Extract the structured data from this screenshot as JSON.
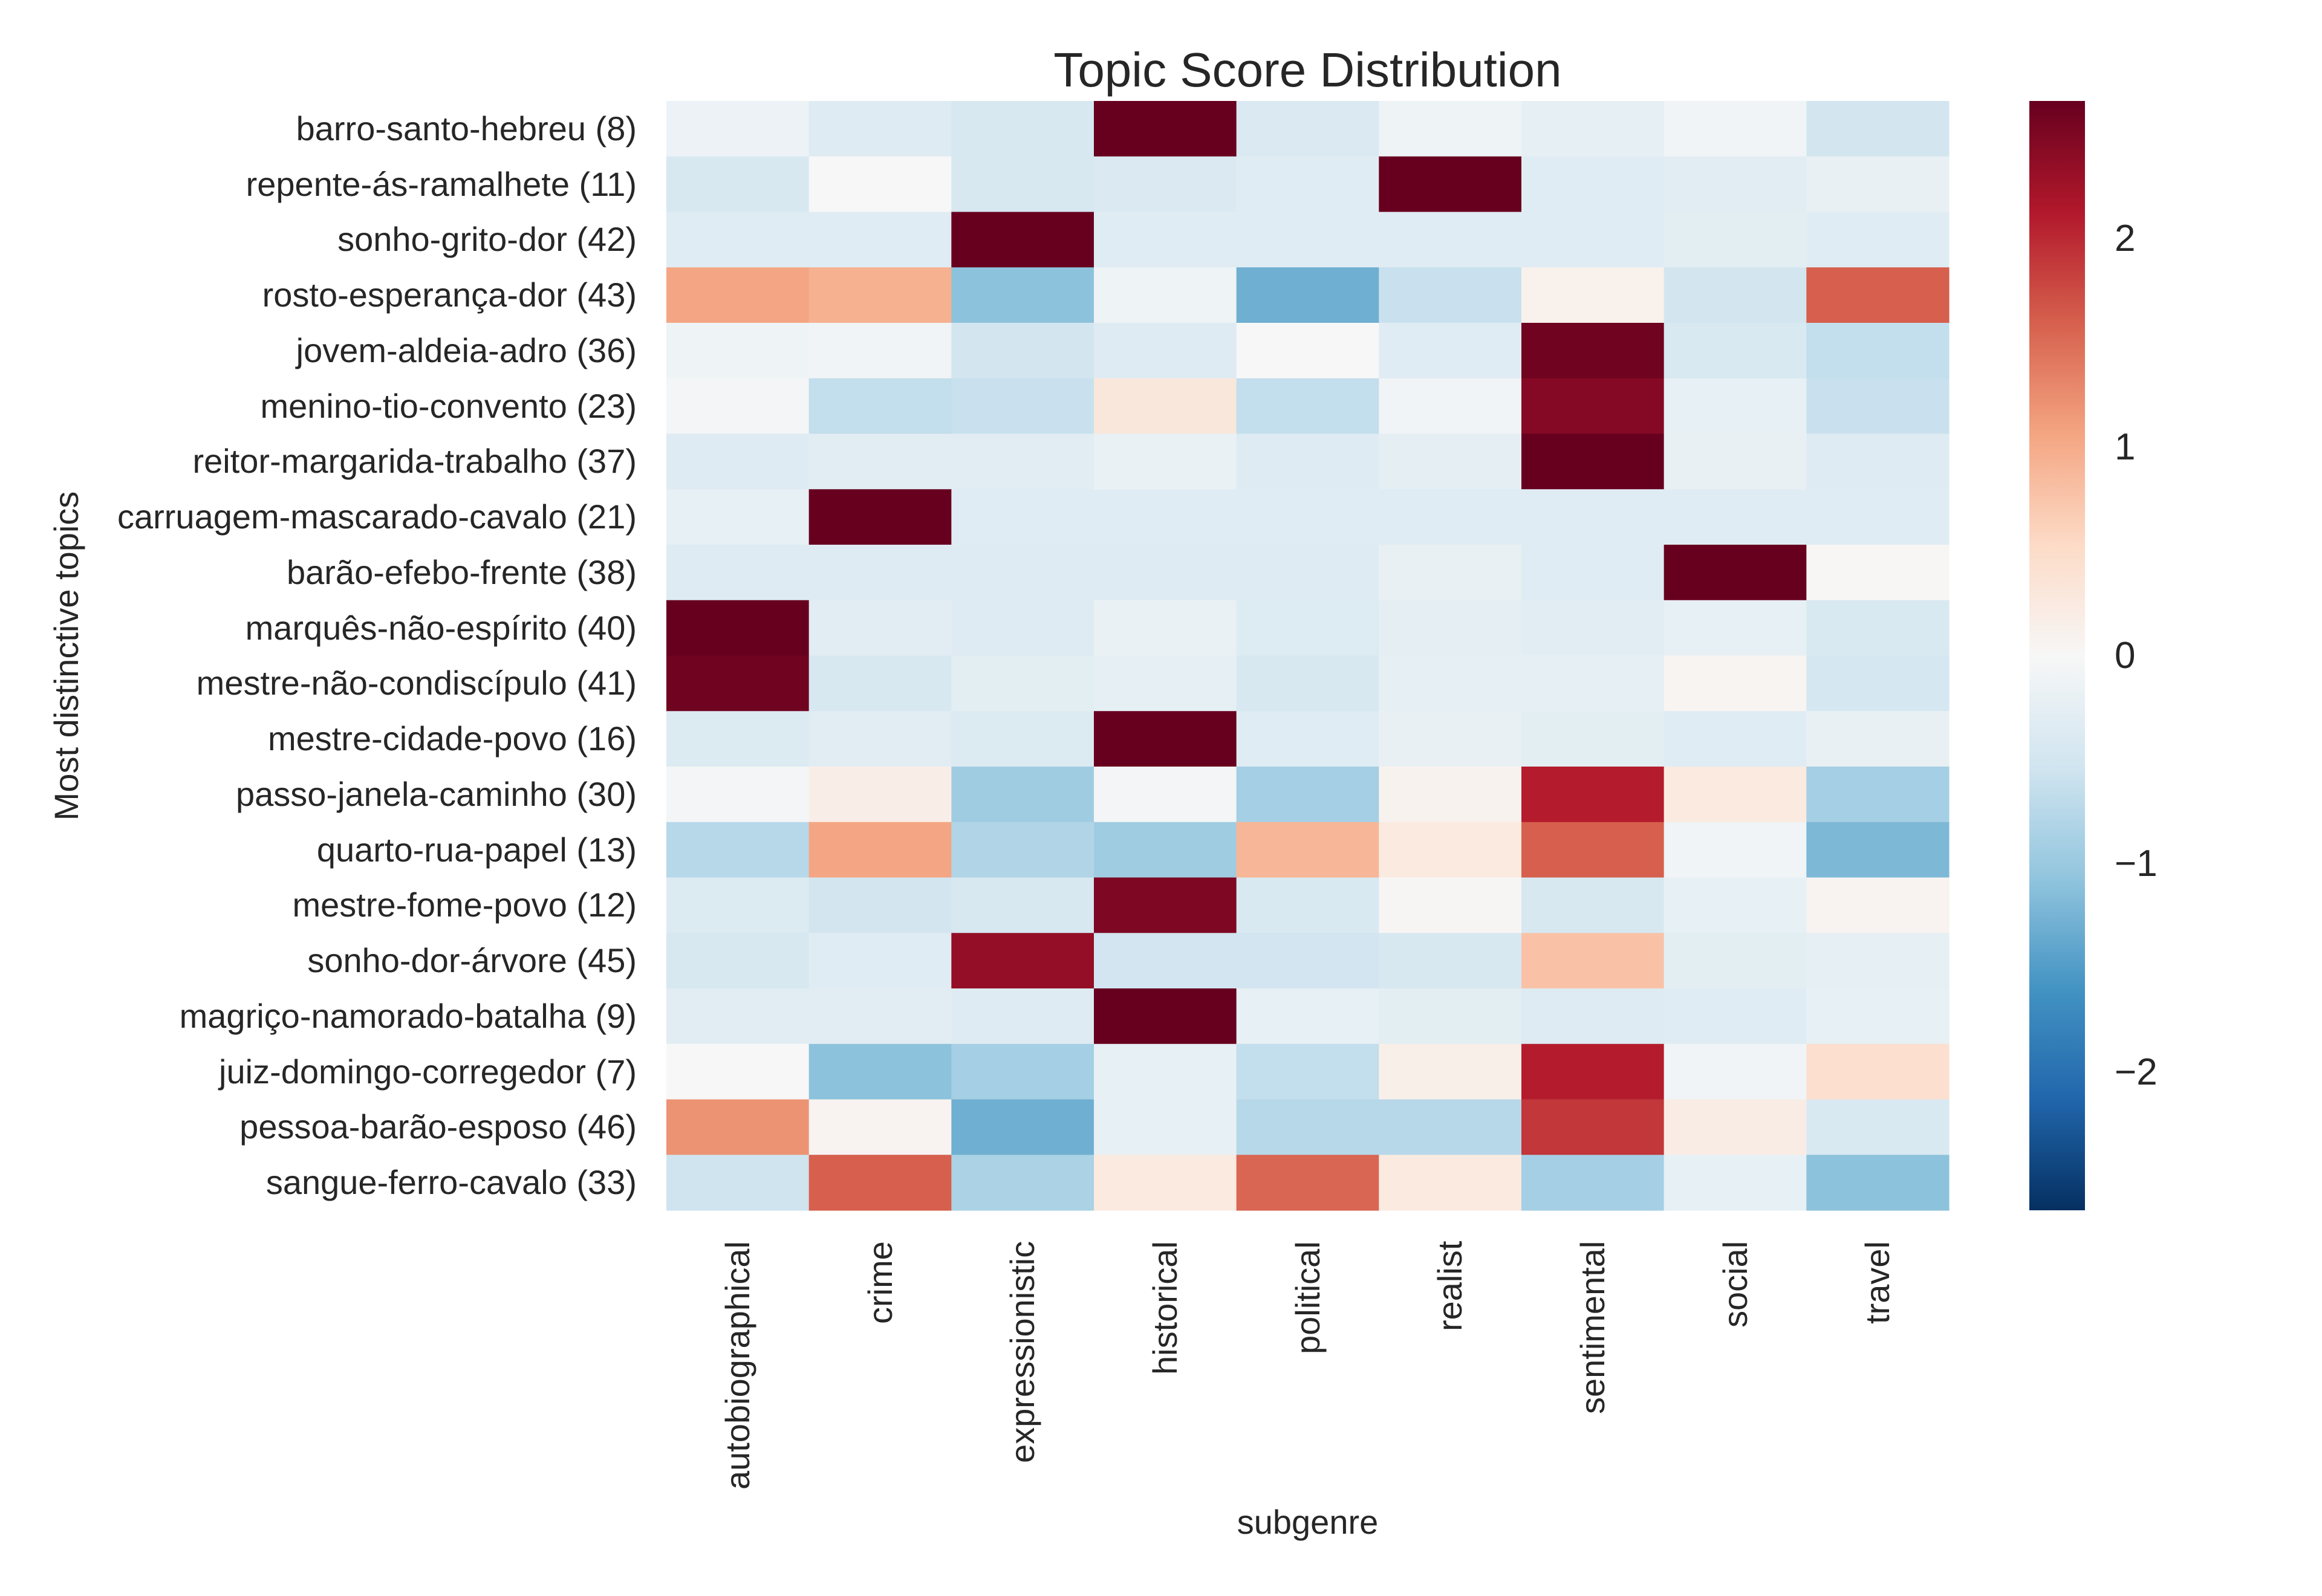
{
  "chart_data": {
    "type": "heatmap",
    "title": "Topic Score Distribution",
    "xlabel": "subgenre",
    "ylabel": "Most distinctive topics",
    "colormap": "RdBu_r",
    "vmin": -2.66,
    "vmax": 2.66,
    "colorbar_ticks": [
      2,
      1,
      0,
      -1,
      -2
    ],
    "colorbar_tick_labels": [
      "2",
      "1",
      "0",
      "−1",
      "−2"
    ],
    "x_categories": [
      "autobiographical",
      "crime",
      "expressionistic",
      "historical",
      "political",
      "realist",
      "sentimental",
      "social",
      "travel"
    ],
    "y_categories": [
      "barro-santo-hebreu (8)",
      "repente-ás-ramalhete (11)",
      "sonho-grito-dor (42)",
      "rosto-esperança-dor (43)",
      "jovem-aldeia-adro (36)",
      "menino-tio-convento (23)",
      "reitor-margarida-trabalho (37)",
      "carruagem-mascarado-cavalo (21)",
      "barão-efebo-frente (38)",
      "marquês-não-espírito (40)",
      "mestre-não-condiscípulo (41)",
      "mestre-cidade-povo (16)",
      "passo-janela-caminho (30)",
      "quarto-rua-papel (13)",
      "mestre-fome-povo (12)",
      "sonho-dor-árvore (45)",
      "magriço-namorado-batalha (9)",
      "juiz-domingo-corregedor (7)",
      "pessoa-barão-esposo (46)",
      "sangue-ferro-cavalo (33)"
    ],
    "values": [
      [
        -0.15,
        -0.35,
        -0.45,
        2.66,
        -0.4,
        -0.12,
        -0.25,
        -0.08,
        -0.5
      ],
      [
        -0.45,
        0.0,
        -0.45,
        -0.4,
        -0.32,
        2.66,
        -0.32,
        -0.3,
        -0.2
      ],
      [
        -0.32,
        -0.32,
        2.66,
        -0.32,
        -0.32,
        -0.32,
        -0.32,
        -0.28,
        -0.32
      ],
      [
        1.05,
        0.95,
        -1.1,
        -0.12,
        -1.3,
        -0.6,
        0.12,
        -0.5,
        1.6
      ],
      [
        -0.12,
        -0.1,
        -0.5,
        -0.35,
        0.0,
        -0.32,
        2.6,
        -0.42,
        -0.65
      ],
      [
        -0.05,
        -0.65,
        -0.6,
        0.3,
        -0.65,
        -0.1,
        2.45,
        -0.22,
        -0.6
      ],
      [
        -0.35,
        -0.3,
        -0.3,
        -0.18,
        -0.35,
        -0.27,
        2.66,
        -0.2,
        -0.35
      ],
      [
        -0.22,
        2.66,
        -0.32,
        -0.32,
        -0.32,
        -0.33,
        -0.32,
        -0.32,
        -0.32
      ],
      [
        -0.35,
        -0.35,
        -0.35,
        -0.35,
        -0.35,
        -0.2,
        -0.32,
        2.66,
        0.02
      ],
      [
        2.66,
        -0.3,
        -0.35,
        -0.18,
        -0.36,
        -0.27,
        -0.3,
        -0.22,
        -0.42
      ],
      [
        2.6,
        -0.45,
        -0.28,
        -0.24,
        -0.45,
        -0.24,
        -0.24,
        0.05,
        -0.48
      ],
      [
        -0.38,
        -0.3,
        -0.38,
        2.66,
        -0.32,
        -0.2,
        -0.28,
        -0.32,
        -0.2
      ],
      [
        -0.05,
        0.18,
        -0.95,
        -0.05,
        -0.9,
        0.1,
        2.1,
        0.25,
        -0.9
      ],
      [
        -0.75,
        1.05,
        -0.8,
        -0.95,
        0.9,
        0.25,
        1.6,
        -0.1,
        -1.2
      ],
      [
        -0.38,
        -0.5,
        -0.45,
        2.5,
        -0.42,
        0.03,
        -0.45,
        -0.22,
        0.08
      ],
      [
        -0.45,
        -0.32,
        2.35,
        -0.52,
        -0.52,
        -0.45,
        0.78,
        -0.28,
        -0.25
      ],
      [
        -0.3,
        -0.3,
        -0.35,
        2.66,
        -0.22,
        -0.28,
        -0.35,
        -0.32,
        -0.22
      ],
      [
        0.0,
        -1.1,
        -0.9,
        -0.22,
        -0.65,
        0.15,
        2.1,
        -0.1,
        0.45
      ],
      [
        1.2,
        0.08,
        -1.3,
        -0.22,
        -0.75,
        -0.75,
        1.9,
        0.2,
        -0.42
      ],
      [
        -0.55,
        1.6,
        -0.85,
        0.25,
        1.55,
        0.25,
        -0.9,
        -0.22,
        -1.1
      ]
    ],
    "grid": false,
    "colorbar_position": "right"
  }
}
